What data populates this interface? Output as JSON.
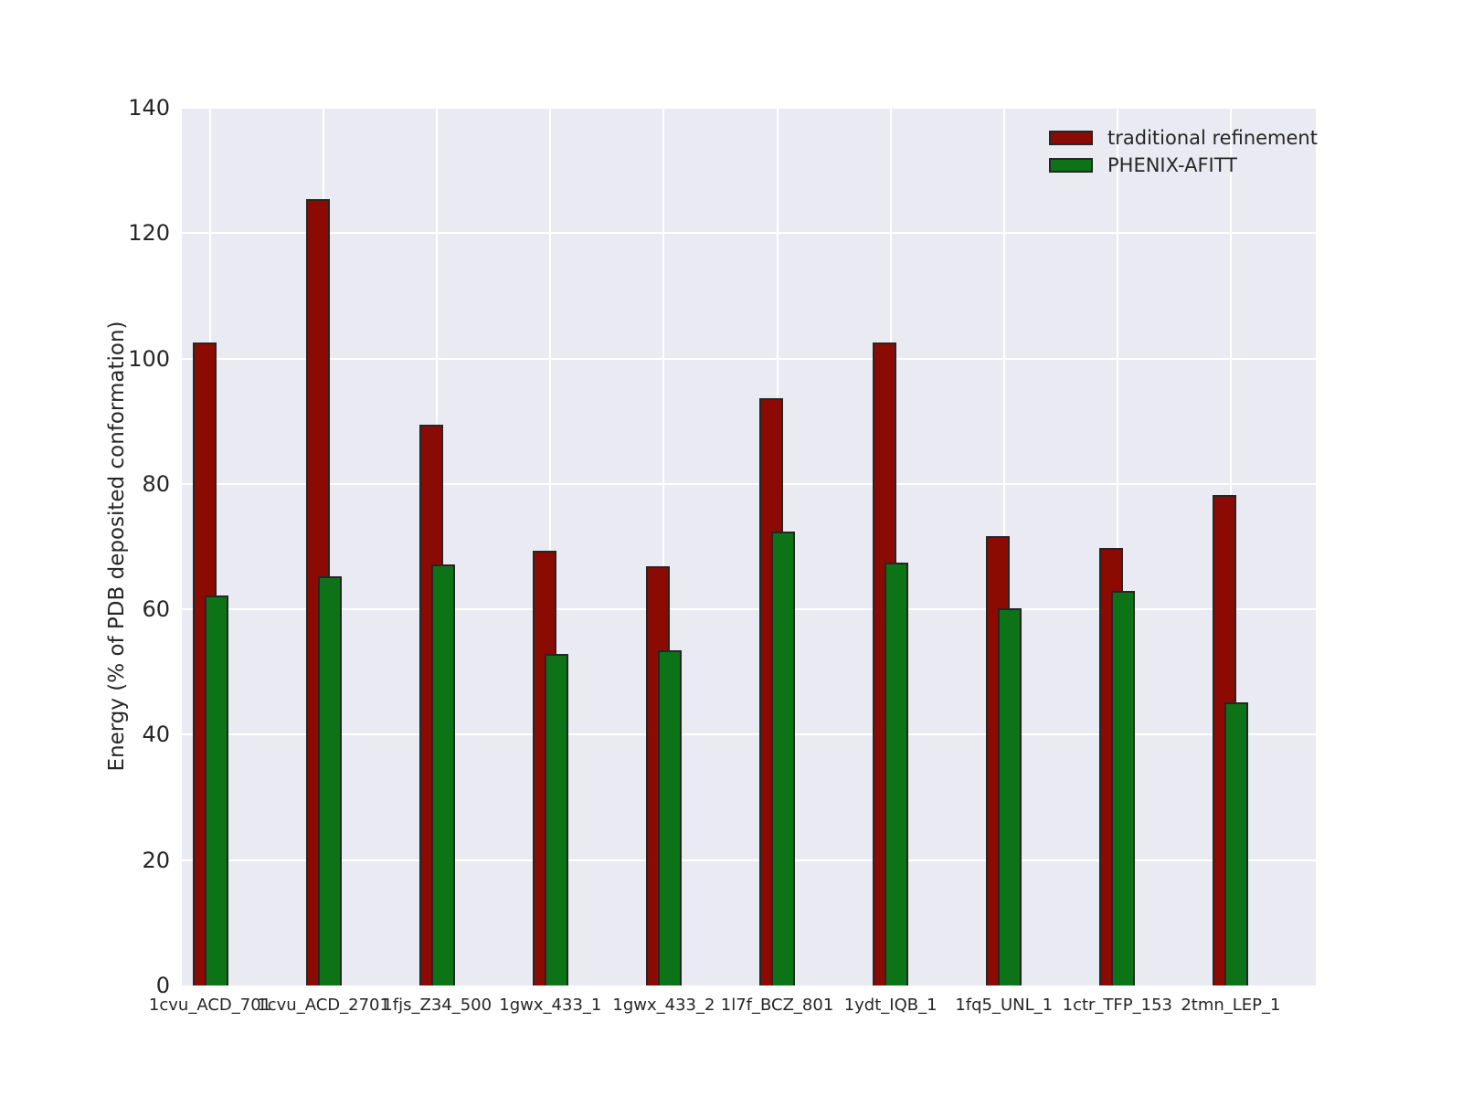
{
  "chart_data": {
    "type": "bar",
    "title": "",
    "xlabel": "",
    "ylabel": "Energy (% of PDB deposited conformation)",
    "ylim": [
      0,
      140
    ],
    "yticks": [
      0,
      20,
      40,
      60,
      80,
      100,
      120,
      140
    ],
    "grid": true,
    "legend_position": "upper right",
    "categories": [
      "1cvu_ACD_701",
      "1cvu_ACD_2701",
      "1fjs_Z34_500",
      "1gwx_433_1",
      "1gwx_433_2",
      "1l7f_BCZ_801",
      "1ydt_IQB_1",
      "1fq5_UNL_1",
      "1ctr_TFP_153",
      "2tmn_LEP_1"
    ],
    "series": [
      {
        "name": "traditional refinement",
        "color": "#8b0a02",
        "values": [
          102.5,
          125.5,
          89.4,
          69.4,
          66.8,
          93.7,
          102.5,
          71.7,
          69.8,
          78.3
        ]
      },
      {
        "name": "PHENIX-AFITT",
        "color": "#0c7316",
        "values": [
          62.2,
          65.2,
          67.2,
          52.9,
          53.5,
          72.4,
          67.5,
          60.2,
          63.0,
          45.2
        ]
      }
    ],
    "colors": {
      "plot_background": "#eaeaf2",
      "grid_line": "#ffffff",
      "bar_edge": "#262626",
      "text": "#262626",
      "figure_background": "#ffffff"
    }
  }
}
